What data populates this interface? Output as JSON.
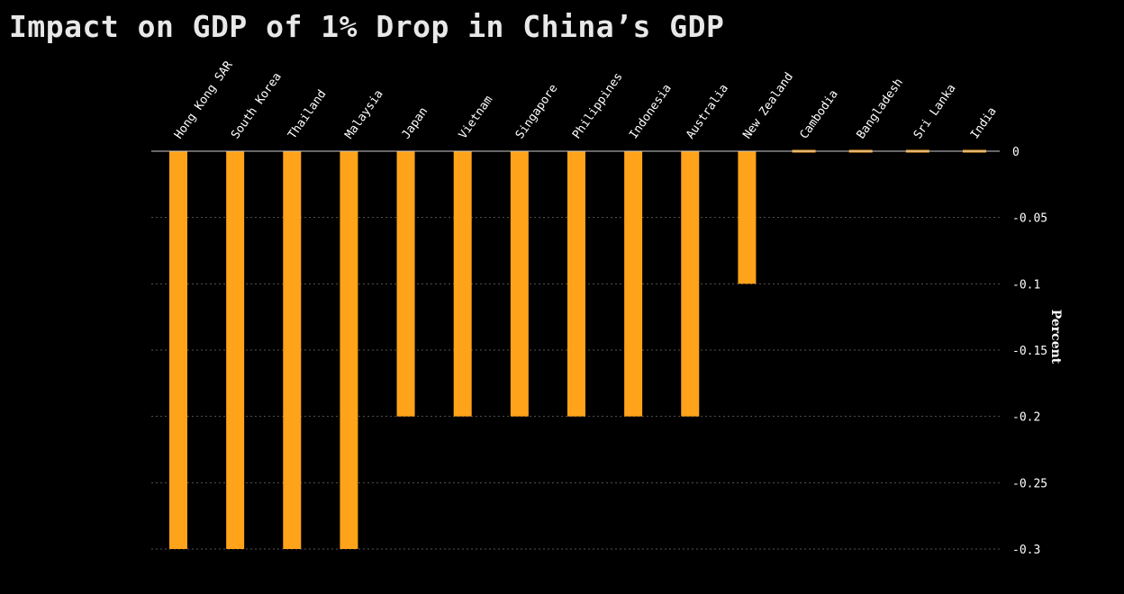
{
  "chart_data": {
    "type": "bar",
    "title": "Impact on GDP of 1% Drop in China’s GDP",
    "ylabel": "Percent",
    "xlabel": "",
    "categories": [
      "Hong Kong SAR",
      "South Korea",
      "Thailand",
      "Malaysia",
      "Japan",
      "Vietnam",
      "Singapore",
      "Philippines",
      "Indonesia",
      "Australia",
      "New Zealand",
      "Cambodia",
      "Bangladesh",
      "Sri Lanka",
      "India"
    ],
    "values": [
      -0.3,
      -0.3,
      -0.3,
      -0.3,
      -0.2,
      -0.2,
      -0.2,
      -0.2,
      -0.2,
      -0.2,
      -0.1,
      0,
      0,
      0,
      0
    ],
    "ylim": [
      -0.3,
      0
    ],
    "yticks": [
      "0",
      "-0.05",
      "-0.1",
      "-0.15",
      "-0.2",
      "-0.25",
      "-0.3"
    ],
    "ytick_values": [
      0,
      -0.05,
      -0.1,
      -0.15,
      -0.2,
      -0.25,
      -0.3
    ],
    "category_axis_position": "top",
    "value_axis_position": "right",
    "grid": true,
    "colors": {
      "bar": "#ffa31a",
      "background": "#000000",
      "text": "#ffffff",
      "grid": "#555555",
      "zero_line": "#cccccc"
    }
  }
}
